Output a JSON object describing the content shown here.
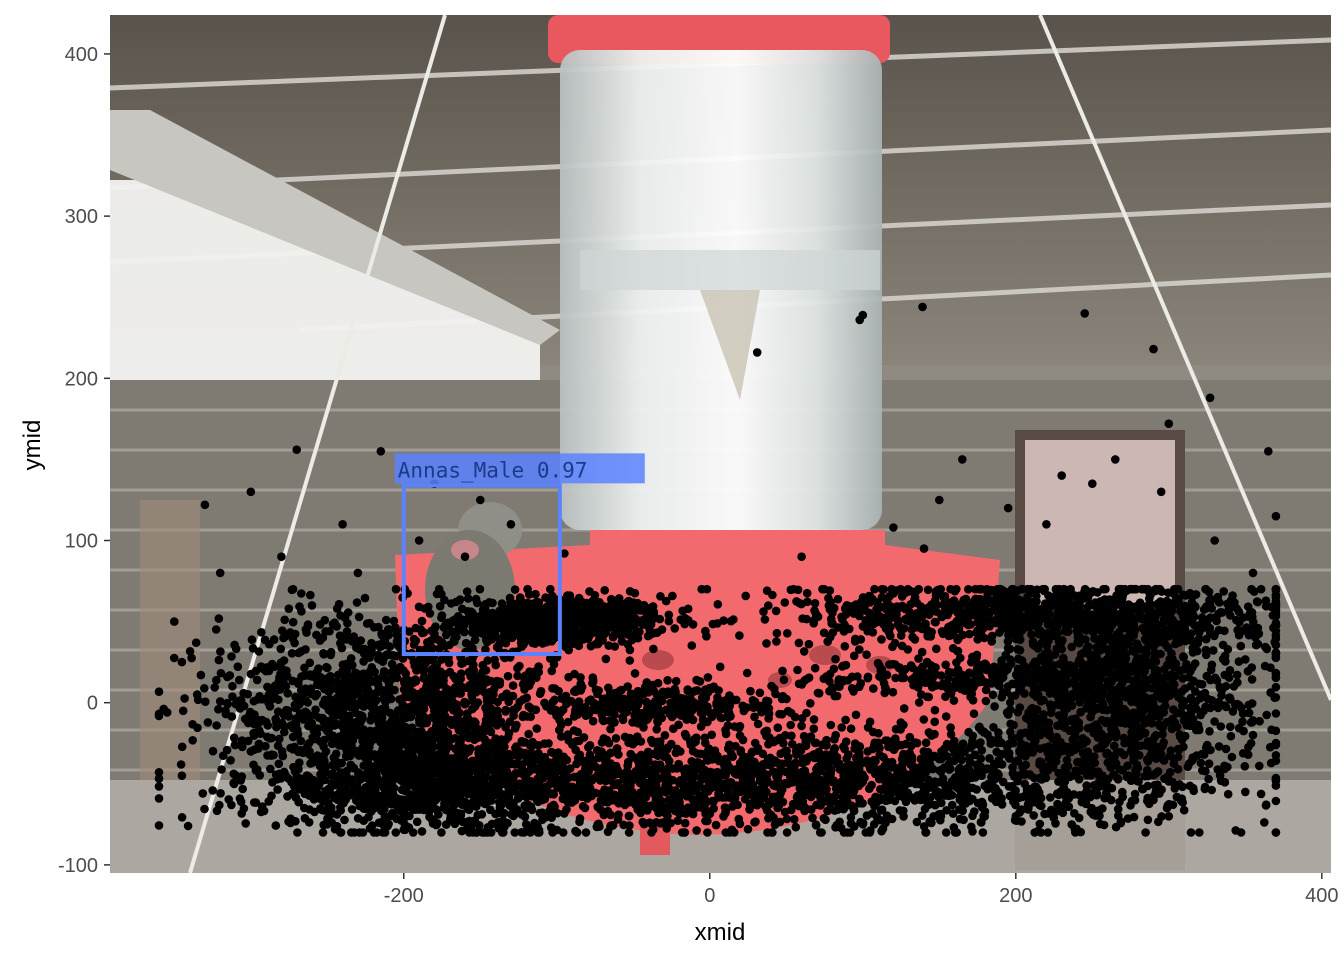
{
  "chart_data": {
    "type": "scatter",
    "xlabel": "xmid",
    "ylabel": "ymid",
    "xlim": [
      -392,
      406
    ],
    "ylim": [
      -105,
      424
    ],
    "x_ticks": [
      -200,
      0,
      200,
      400
    ],
    "y_ticks": [
      -100,
      0,
      100,
      200,
      300,
      400
    ],
    "x_tick_labels": [
      "-200",
      "0",
      "200",
      "400"
    ],
    "y_tick_labels": [
      "-100",
      "0",
      "100",
      "200",
      "300",
      "400"
    ],
    "grid": false,
    "background": "photo of a red hummingbird feeder with a clear reservoir under a porch roof",
    "point_color": "#000000",
    "annotation": {
      "text": "Annas_Male 0.97",
      "color": "#5b82ff",
      "box": {
        "x0": -200,
        "x1": -98,
        "y0": 30,
        "y1": 134
      }
    },
    "clusters": [
      {
        "name": "left-upper-band",
        "cx": -100,
        "cy": 50,
        "sx": 35,
        "sy": 8,
        "n": 700
      },
      {
        "name": "left-core",
        "cx": -210,
        "cy": 0,
        "sx": 55,
        "sy": 28,
        "n": 1300
      },
      {
        "name": "left-lower",
        "cx": -180,
        "cy": -50,
        "sx": 60,
        "sy": 15,
        "n": 900
      },
      {
        "name": "center-bottom",
        "cx": -20,
        "cy": -50,
        "sx": 90,
        "sy": 14,
        "n": 1000
      },
      {
        "name": "right-upper-band",
        "cx": 210,
        "cy": 55,
        "sx": 85,
        "sy": 10,
        "n": 900
      },
      {
        "name": "right-core",
        "cx": 270,
        "cy": 10,
        "sx": 45,
        "sy": 28,
        "n": 900
      },
      {
        "name": "right-lower",
        "cx": 170,
        "cy": -45,
        "sx": 90,
        "sy": 18,
        "n": 900
      },
      {
        "name": "right-mid-band",
        "cx": 180,
        "cy": 15,
        "sx": 60,
        "sy": 6,
        "n": 300
      },
      {
        "name": "center-mid-band",
        "cx": -30,
        "cy": 0,
        "sx": 40,
        "sy": 7,
        "n": 300
      }
    ],
    "outliers": [
      [
        -270,
        156
      ],
      [
        -215,
        155
      ],
      [
        -180,
        135
      ],
      [
        -330,
        122
      ],
      [
        -300,
        130
      ],
      [
        -240,
        110
      ],
      [
        -350,
        50
      ],
      [
        -320,
        80
      ],
      [
        -345,
        25
      ],
      [
        -335,
        5
      ],
      [
        -345,
        -45
      ],
      [
        -250,
        -75
      ],
      [
        -300,
        -30
      ],
      [
        -280,
        90
      ],
      [
        -260,
        60
      ],
      [
        -190,
        100
      ],
      [
        -150,
        125
      ],
      [
        -130,
        110
      ],
      [
        -160,
        90
      ],
      [
        -230,
        80
      ],
      [
        31,
        216
      ],
      [
        100,
        239
      ],
      [
        98,
        236
      ],
      [
        139,
        244
      ],
      [
        245,
        240
      ],
      [
        290,
        218
      ],
      [
        327,
        188
      ],
      [
        295,
        130
      ],
      [
        265,
        150
      ],
      [
        230,
        140
      ],
      [
        300,
        172
      ],
      [
        365,
        155
      ],
      [
        370,
        115
      ],
      [
        330,
        100
      ],
      [
        355,
        80
      ],
      [
        120,
        108
      ],
      [
        150,
        125
      ],
      [
        165,
        150
      ],
      [
        195,
        120
      ],
      [
        220,
        110
      ],
      [
        140,
        95
      ],
      [
        95,
        60
      ],
      [
        25,
        -78
      ],
      [
        -60,
        -72
      ],
      [
        -120,
        -75
      ],
      [
        100,
        -75
      ],
      [
        200,
        -70
      ],
      [
        290,
        -60
      ],
      [
        350,
        -55
      ],
      [
        340,
        20
      ],
      [
        355,
        -20
      ],
      [
        -10,
        -45
      ],
      [
        60,
        90
      ],
      [
        250,
        135
      ],
      [
        -95,
        92
      ],
      [
        -120,
        60
      ],
      [
        -200,
        45
      ],
      [
        -230,
        35
      ]
    ]
  }
}
